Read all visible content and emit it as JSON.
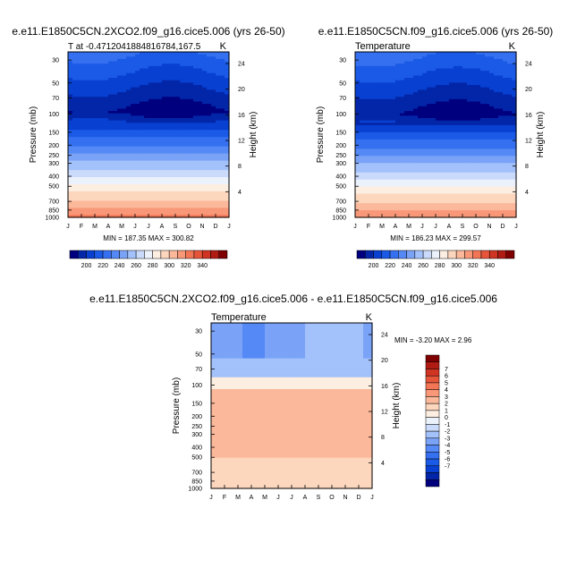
{
  "months": [
    "J",
    "F",
    "M",
    "A",
    "M",
    "J",
    "J",
    "A",
    "S",
    "O",
    "N",
    "D",
    "J"
  ],
  "pressure_ticks": [
    30,
    50,
    70,
    100,
    150,
    200,
    250,
    300,
    400,
    500,
    700,
    850,
    1000
  ],
  "height_ticks": [
    4,
    8,
    12,
    16,
    20,
    24
  ],
  "y_label": "Pressure (mb)",
  "y2_label": "Height (km)",
  "unit": "K",
  "chart_data": [
    {
      "type": "heatmap",
      "title": "e.e11.E1850C5CN.2XCO2.f09_g16.cice5.006 (yrs 26-50)",
      "left_label": "T at -0.4712041884816784,167.5",
      "right_label": "K",
      "min_max_text": "MIN = 187.35 MAX = 300.82",
      "x": [
        "J",
        "F",
        "M",
        "A",
        "M",
        "J",
        "J",
        "A",
        "S",
        "O",
        "N",
        "D",
        "J"
      ],
      "ylabel": "Pressure (mb)",
      "y2label": "Height (km)",
      "colorbar_labels": [
        "200",
        "220",
        "240",
        "260",
        "280",
        "300",
        "320",
        "340"
      ],
      "colors": [
        "#00007f",
        "#0326a8",
        "#0840d2",
        "#1a5ae6",
        "#3570f0",
        "#5589f5",
        "#7aa3f8",
        "#a3c1fa",
        "#cadafb",
        "#ecf2fc",
        "#fdeee2",
        "#fcd6bd",
        "#fbb89a",
        "#f89878",
        "#f27656",
        "#e6553a",
        "#d03422",
        "#b01b13",
        "#7f0000"
      ]
    },
    {
      "type": "heatmap",
      "title": "e.e11.E1850C5CN.f09_g16.cice5.006 (yrs 26-50)",
      "left_label": "Temperature",
      "right_label": "K",
      "min_max_text": "MIN = 186.23 MAX = 299.57",
      "x": [
        "J",
        "F",
        "M",
        "A",
        "M",
        "J",
        "J",
        "A",
        "S",
        "O",
        "N",
        "D",
        "J"
      ],
      "ylabel": "Pressure (mb)",
      "y2label": "Height (km)",
      "colorbar_labels": [
        "200",
        "220",
        "240",
        "260",
        "280",
        "300",
        "320",
        "340"
      ]
    },
    {
      "type": "heatmap",
      "title": "e.e11.E1850C5CN.2XCO2.f09_g16.cice5.006 - e.e11.E1850C5CN.f09_g16.cice5.006",
      "left_label": "Temperature",
      "right_label": "K",
      "min_max_text": "MIN =  -3.20 MAX =   2.96",
      "x": [
        "J",
        "F",
        "M",
        "A",
        "M",
        "J",
        "J",
        "A",
        "S",
        "O",
        "N",
        "D",
        "J"
      ],
      "ylabel": "Pressure (mb)",
      "y2label": "Height (km)",
      "colorbar_labels": [
        "7",
        "6",
        "5",
        "4",
        "3",
        "2",
        "1",
        "0",
        "-1",
        "-2",
        "-3",
        "-4",
        "-5",
        "-6",
        "-7"
      ],
      "diff_colors": [
        "#7f0000",
        "#b01b13",
        "#d03422",
        "#e6553a",
        "#f27656",
        "#f89878",
        "#fbb89a",
        "#fcd6bd",
        "#fdeee2",
        "#ecf2fc",
        "#cadafb",
        "#a3c1fa",
        "#7aa3f8",
        "#5589f5",
        "#3570f0",
        "#1a5ae6",
        "#0840d2",
        "#0326a8",
        "#00007f"
      ]
    }
  ]
}
